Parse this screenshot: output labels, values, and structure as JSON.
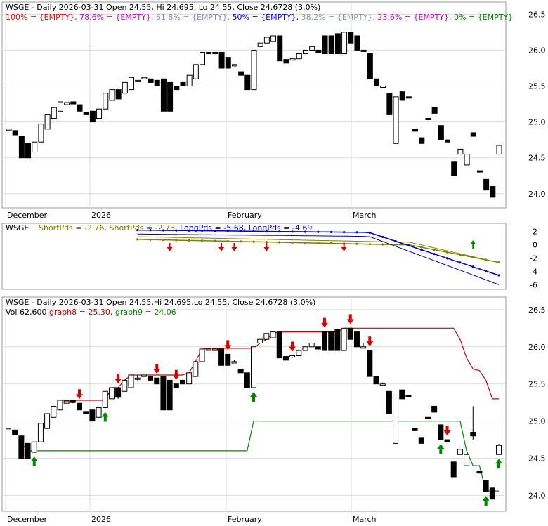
{
  "chart_data": [
    {
      "panel": "price-fib",
      "type": "ohlc",
      "title": "WSGE - Daily 2026-03-31 Open 24.55, Hi 24.695, Lo 24.55, Close 24.6728 (3.0%)",
      "fib_legend": [
        {
          "text": "100% = {EMPTY},",
          "color": "#ff0000"
        },
        {
          "text": "78.6% = {EMPTY},",
          "color": "#cc00cc"
        },
        {
          "text": "61.8% = {EMPTY},",
          "color": "#8888cc"
        },
        {
          "text": "50% = {EMPTY},",
          "color": "#0000ff"
        },
        {
          "text": "38.2% = {EMPTY},",
          "color": "#8899aa"
        },
        {
          "text": "23.6% = {EMPTY},",
          "color": "#cc00cc"
        },
        {
          "text": "0% = {EMPTY}",
          "color": "#008800"
        }
      ],
      "x_labels": [
        "December",
        "2026",
        "February",
        "March"
      ],
      "y_ticks": [
        24.0,
        24.5,
        25.0,
        25.5,
        26.0,
        26.5
      ],
      "ylim": [
        23.9,
        26.65
      ],
      "grid": true
    },
    {
      "panel": "pds",
      "type": "line",
      "title": "WSGE",
      "legend": [
        {
          "text": "ShortPds = -2.76,",
          "color": "#808000"
        },
        {
          "text": "ShortPds = -2.73,",
          "color": "#808000"
        },
        {
          "text": "LongPds = -5.68,",
          "color": "#0000cc"
        },
        {
          "text": "LongPds = -4.69",
          "color": "#0000cc"
        }
      ],
      "y_ticks": [
        2,
        0,
        -2,
        -4,
        -6
      ],
      "ylim": [
        -6.5,
        3
      ],
      "signals": {
        "sell": 5,
        "buy": 1
      }
    },
    {
      "panel": "price-graph",
      "type": "candlestick",
      "title": "WSGE - Daily 2026-03-31 Open 24.55,Hi 24.695,Lo 24.55, Close 24.6728 (3.0%)",
      "vol_text": "Vol 62,600",
      "legend": [
        {
          "text": "graph8 = 25.30,",
          "color": "#cc0000"
        },
        {
          "text": "graph9 = 24.06",
          "color": "#008800"
        }
      ],
      "x_labels": [
        "December",
        "2026",
        "February",
        "March"
      ],
      "y_ticks": [
        24.0,
        24.5,
        25.0,
        25.5,
        26.0,
        26.5
      ],
      "ylim": [
        23.9,
        26.65
      ],
      "bars": [
        {
          "o": 24.9,
          "h": 24.9,
          "l": 24.9,
          "c": 24.9
        },
        {
          "o": 24.88,
          "h": 24.88,
          "l": 24.82,
          "c": 24.82
        },
        {
          "o": 24.8,
          "h": 24.8,
          "l": 24.5,
          "c": 24.5
        },
        {
          "o": 24.7,
          "h": 24.7,
          "l": 24.5,
          "c": 24.5
        },
        {
          "o": 24.58,
          "h": 24.72,
          "l": 24.58,
          "c": 24.72
        },
        {
          "o": 24.72,
          "h": 24.97,
          "l": 24.72,
          "c": 24.97
        },
        {
          "o": 24.9,
          "h": 25.1,
          "l": 24.9,
          "c": 25.1
        },
        {
          "o": 25.05,
          "h": 25.2,
          "l": 25.05,
          "c": 25.2
        },
        {
          "o": 25.15,
          "h": 25.28,
          "l": 25.15,
          "c": 25.28
        },
        {
          "o": 25.24,
          "h": 25.28,
          "l": 25.24,
          "c": 25.27
        },
        {
          "o": 25.28,
          "h": 25.28,
          "l": 25.24,
          "c": 25.25
        },
        {
          "o": 25.24,
          "h": 25.24,
          "l": 25.15,
          "c": 25.15
        },
        {
          "o": 25.13,
          "h": 25.13,
          "l": 25.1,
          "c": 25.1
        },
        {
          "o": 25.15,
          "h": 25.15,
          "l": 25.0,
          "c": 25.0
        },
        {
          "o": 25.05,
          "h": 25.18,
          "l": 25.05,
          "c": 25.18
        },
        {
          "o": 25.18,
          "h": 25.4,
          "l": 25.18,
          "c": 25.4
        },
        {
          "o": 25.3,
          "h": 25.45,
          "l": 25.3,
          "c": 25.45
        },
        {
          "o": 25.45,
          "h": 25.45,
          "l": 25.3,
          "c": 25.32
        },
        {
          "o": 25.4,
          "h": 25.55,
          "l": 25.4,
          "c": 25.55
        },
        {
          "o": 25.45,
          "h": 25.62,
          "l": 25.45,
          "c": 25.62
        },
        {
          "o": 25.58,
          "h": 25.62,
          "l": 25.55,
          "c": 25.58
        },
        {
          "o": 25.6,
          "h": 25.62,
          "l": 25.6,
          "c": 25.62
        },
        {
          "o": 25.6,
          "h": 25.6,
          "l": 25.55,
          "c": 25.55
        },
        {
          "o": 25.58,
          "h": 25.58,
          "l": 25.5,
          "c": 25.5
        },
        {
          "o": 25.6,
          "h": 25.6,
          "l": 25.15,
          "c": 25.15
        },
        {
          "o": 25.55,
          "h": 25.55,
          "l": 25.15,
          "c": 25.15
        },
        {
          "o": 25.5,
          "h": 25.5,
          "l": 25.45,
          "c": 25.45
        },
        {
          "o": 25.55,
          "h": 25.55,
          "l": 25.5,
          "c": 25.5
        },
        {
          "o": 25.5,
          "h": 25.65,
          "l": 25.5,
          "c": 25.65
        },
        {
          "o": 25.6,
          "h": 25.8,
          "l": 25.6,
          "c": 25.8
        },
        {
          "o": 25.8,
          "h": 25.97,
          "l": 25.8,
          "c": 25.97
        },
        {
          "o": 25.97,
          "h": 25.98,
          "l": 25.95,
          "c": 25.97
        },
        {
          "o": 25.95,
          "h": 25.97,
          "l": 25.95,
          "c": 25.97
        },
        {
          "o": 25.97,
          "h": 25.97,
          "l": 25.75,
          "c": 25.75
        },
        {
          "o": 25.9,
          "h": 25.9,
          "l": 25.75,
          "c": 25.75
        },
        {
          "o": 25.8,
          "h": 25.82,
          "l": 25.8,
          "c": 25.8
        },
        {
          "o": 25.7,
          "h": 25.7,
          "l": 25.65,
          "c": 25.65
        },
        {
          "o": 25.65,
          "h": 25.65,
          "l": 25.45,
          "c": 25.45
        },
        {
          "o": 25.45,
          "h": 26.0,
          "l": 25.45,
          "c": 26.0
        },
        {
          "o": 26.05,
          "h": 26.1,
          "l": 26.05,
          "c": 26.1
        },
        {
          "o": 26.1,
          "h": 26.18,
          "l": 26.1,
          "c": 26.18
        },
        {
          "o": 26.12,
          "h": 26.2,
          "l": 26.12,
          "c": 26.2
        },
        {
          "o": 26.2,
          "h": 26.2,
          "l": 25.85,
          "c": 25.85
        },
        {
          "o": 25.87,
          "h": 25.87,
          "l": 25.82,
          "c": 25.82
        },
        {
          "o": 25.87,
          "h": 25.88,
          "l": 25.85,
          "c": 25.88
        },
        {
          "o": 25.88,
          "h": 25.95,
          "l": 25.88,
          "c": 25.95
        },
        {
          "o": 25.95,
          "h": 26.0,
          "l": 25.95,
          "c": 26.0
        },
        {
          "o": 26.0,
          "h": 26.05,
          "l": 26.0,
          "c": 26.05
        },
        {
          "o": 26.0,
          "h": 26.0,
          "l": 25.95,
          "c": 25.97
        },
        {
          "o": 26.2,
          "h": 26.2,
          "l": 25.95,
          "c": 25.95
        },
        {
          "o": 26.2,
          "h": 26.2,
          "l": 25.95,
          "c": 25.95
        },
        {
          "o": 26.23,
          "h": 26.23,
          "l": 25.95,
          "c": 25.95
        },
        {
          "o": 25.95,
          "h": 26.25,
          "l": 25.95,
          "c": 26.25
        },
        {
          "o": 26.25,
          "h": 26.25,
          "l": 26.1,
          "c": 26.1
        },
        {
          "o": 26.2,
          "h": 26.2,
          "l": 26.0,
          "c": 26.0
        },
        {
          "o": 26.0,
          "h": 26.05,
          "l": 26.0,
          "c": 26.0
        },
        {
          "o": 25.95,
          "h": 25.95,
          "l": 25.6,
          "c": 25.6
        },
        {
          "o": 25.6,
          "h": 25.6,
          "l": 25.5,
          "c": 25.5
        },
        {
          "o": 25.5,
          "h": 25.52,
          "l": 25.5,
          "c": 25.5
        },
        {
          "o": 25.4,
          "h": 25.4,
          "l": 25.1,
          "c": 25.1
        },
        {
          "o": 24.7,
          "h": 25.35,
          "l": 24.7,
          "c": 25.35
        },
        {
          "o": 25.42,
          "h": 25.42,
          "l": 25.3,
          "c": 25.3
        },
        {
          "o": 25.35,
          "h": 25.35,
          "l": 25.34,
          "c": 25.34
        },
        {
          "o": 24.9,
          "h": 24.9,
          "l": 24.87,
          "c": 24.87
        },
        {
          "o": 24.78,
          "h": 24.78,
          "l": 24.7,
          "c": 24.7
        },
        {
          "o": 25.05,
          "h": 25.05,
          "l": 25.04,
          "c": 25.04
        },
        {
          "o": 25.2,
          "h": 25.2,
          "l": 25.12,
          "c": 25.12
        },
        {
          "o": 24.95,
          "h": 24.95,
          "l": 24.75,
          "c": 24.75
        },
        {
          "o": 24.75,
          "h": 24.75,
          "l": 24.72,
          "c": 24.72
        },
        {
          "o": 24.45,
          "h": 24.45,
          "l": 24.25,
          "c": 24.25
        },
        {
          "o": 24.55,
          "h": 24.62,
          "l": 24.55,
          "c": 24.62
        },
        {
          "o": 24.4,
          "h": 24.55,
          "l": 24.4,
          "c": 24.55
        },
        {
          "o": 24.85,
          "h": 25.2,
          "l": 24.75,
          "c": 24.8
        },
        {
          "o": 24.32,
          "h": 24.32,
          "l": 24.3,
          "c": 24.3
        },
        {
          "o": 24.2,
          "h": 24.2,
          "l": 24.05,
          "c": 24.05
        },
        {
          "o": 24.1,
          "h": 24.1,
          "l": 23.95,
          "c": 23.95
        },
        {
          "o": 24.55,
          "h": 24.695,
          "l": 24.55,
          "c": 24.6728
        }
      ],
      "graph8": [
        null,
        null,
        null,
        null,
        null,
        null,
        null,
        null,
        25.28,
        25.28,
        25.28,
        25.28,
        25.28,
        25.28,
        25.28,
        25.28,
        25.45,
        25.45,
        25.55,
        25.62,
        25.62,
        25.62,
        25.62,
        25.62,
        25.62,
        25.62,
        25.62,
        25.62,
        25.65,
        25.8,
        25.97,
        25.98,
        25.98,
        25.98,
        25.98,
        25.98,
        25.98,
        25.98,
        25.98,
        26.05,
        26.1,
        26.18,
        26.2,
        26.2,
        26.2,
        26.2,
        26.2,
        26.2,
        26.2,
        26.2,
        26.2,
        26.2,
        26.25,
        26.25,
        26.25,
        26.25,
        26.25,
        26.25,
        26.25,
        26.25,
        26.25,
        26.25,
        26.25,
        26.25,
        26.25,
        26.25,
        26.25,
        26.25,
        26.25,
        26.25,
        26.1,
        25.85,
        25.7,
        25.68,
        25.55,
        25.3,
        25.3
      ],
      "graph9": [
        null,
        null,
        24.7,
        24.6,
        24.6,
        24.6,
        24.6,
        24.6,
        24.6,
        24.6,
        24.6,
        24.6,
        24.6,
        24.6,
        24.6,
        24.6,
        24.6,
        24.6,
        24.6,
        24.6,
        24.6,
        24.6,
        24.6,
        24.6,
        24.6,
        24.6,
        24.6,
        24.6,
        24.6,
        24.6,
        24.6,
        24.6,
        24.6,
        24.6,
        24.6,
        24.6,
        24.6,
        24.6,
        25.0,
        25.0,
        25.0,
        25.0,
        25.0,
        25.0,
        25.0,
        25.0,
        25.0,
        25.0,
        25.0,
        25.0,
        25.0,
        25.0,
        25.0,
        25.0,
        25.0,
        25.0,
        25.0,
        25.0,
        25.0,
        25.0,
        25.0,
        25.0,
        25.0,
        25.0,
        25.0,
        25.0,
        25.0,
        25.0,
        25.0,
        25.0,
        25.0,
        24.6,
        24.4,
        24.4,
        24.06,
        24.06,
        24.06
      ],
      "sell_markers": [
        8,
        17,
        20,
        26,
        40,
        45,
        51,
        58,
        79,
        96,
        107,
        114
      ],
      "buy_markers": [
        4,
        13,
        37,
        68,
        73,
        75,
        80
      ],
      "grid": true
    }
  ]
}
